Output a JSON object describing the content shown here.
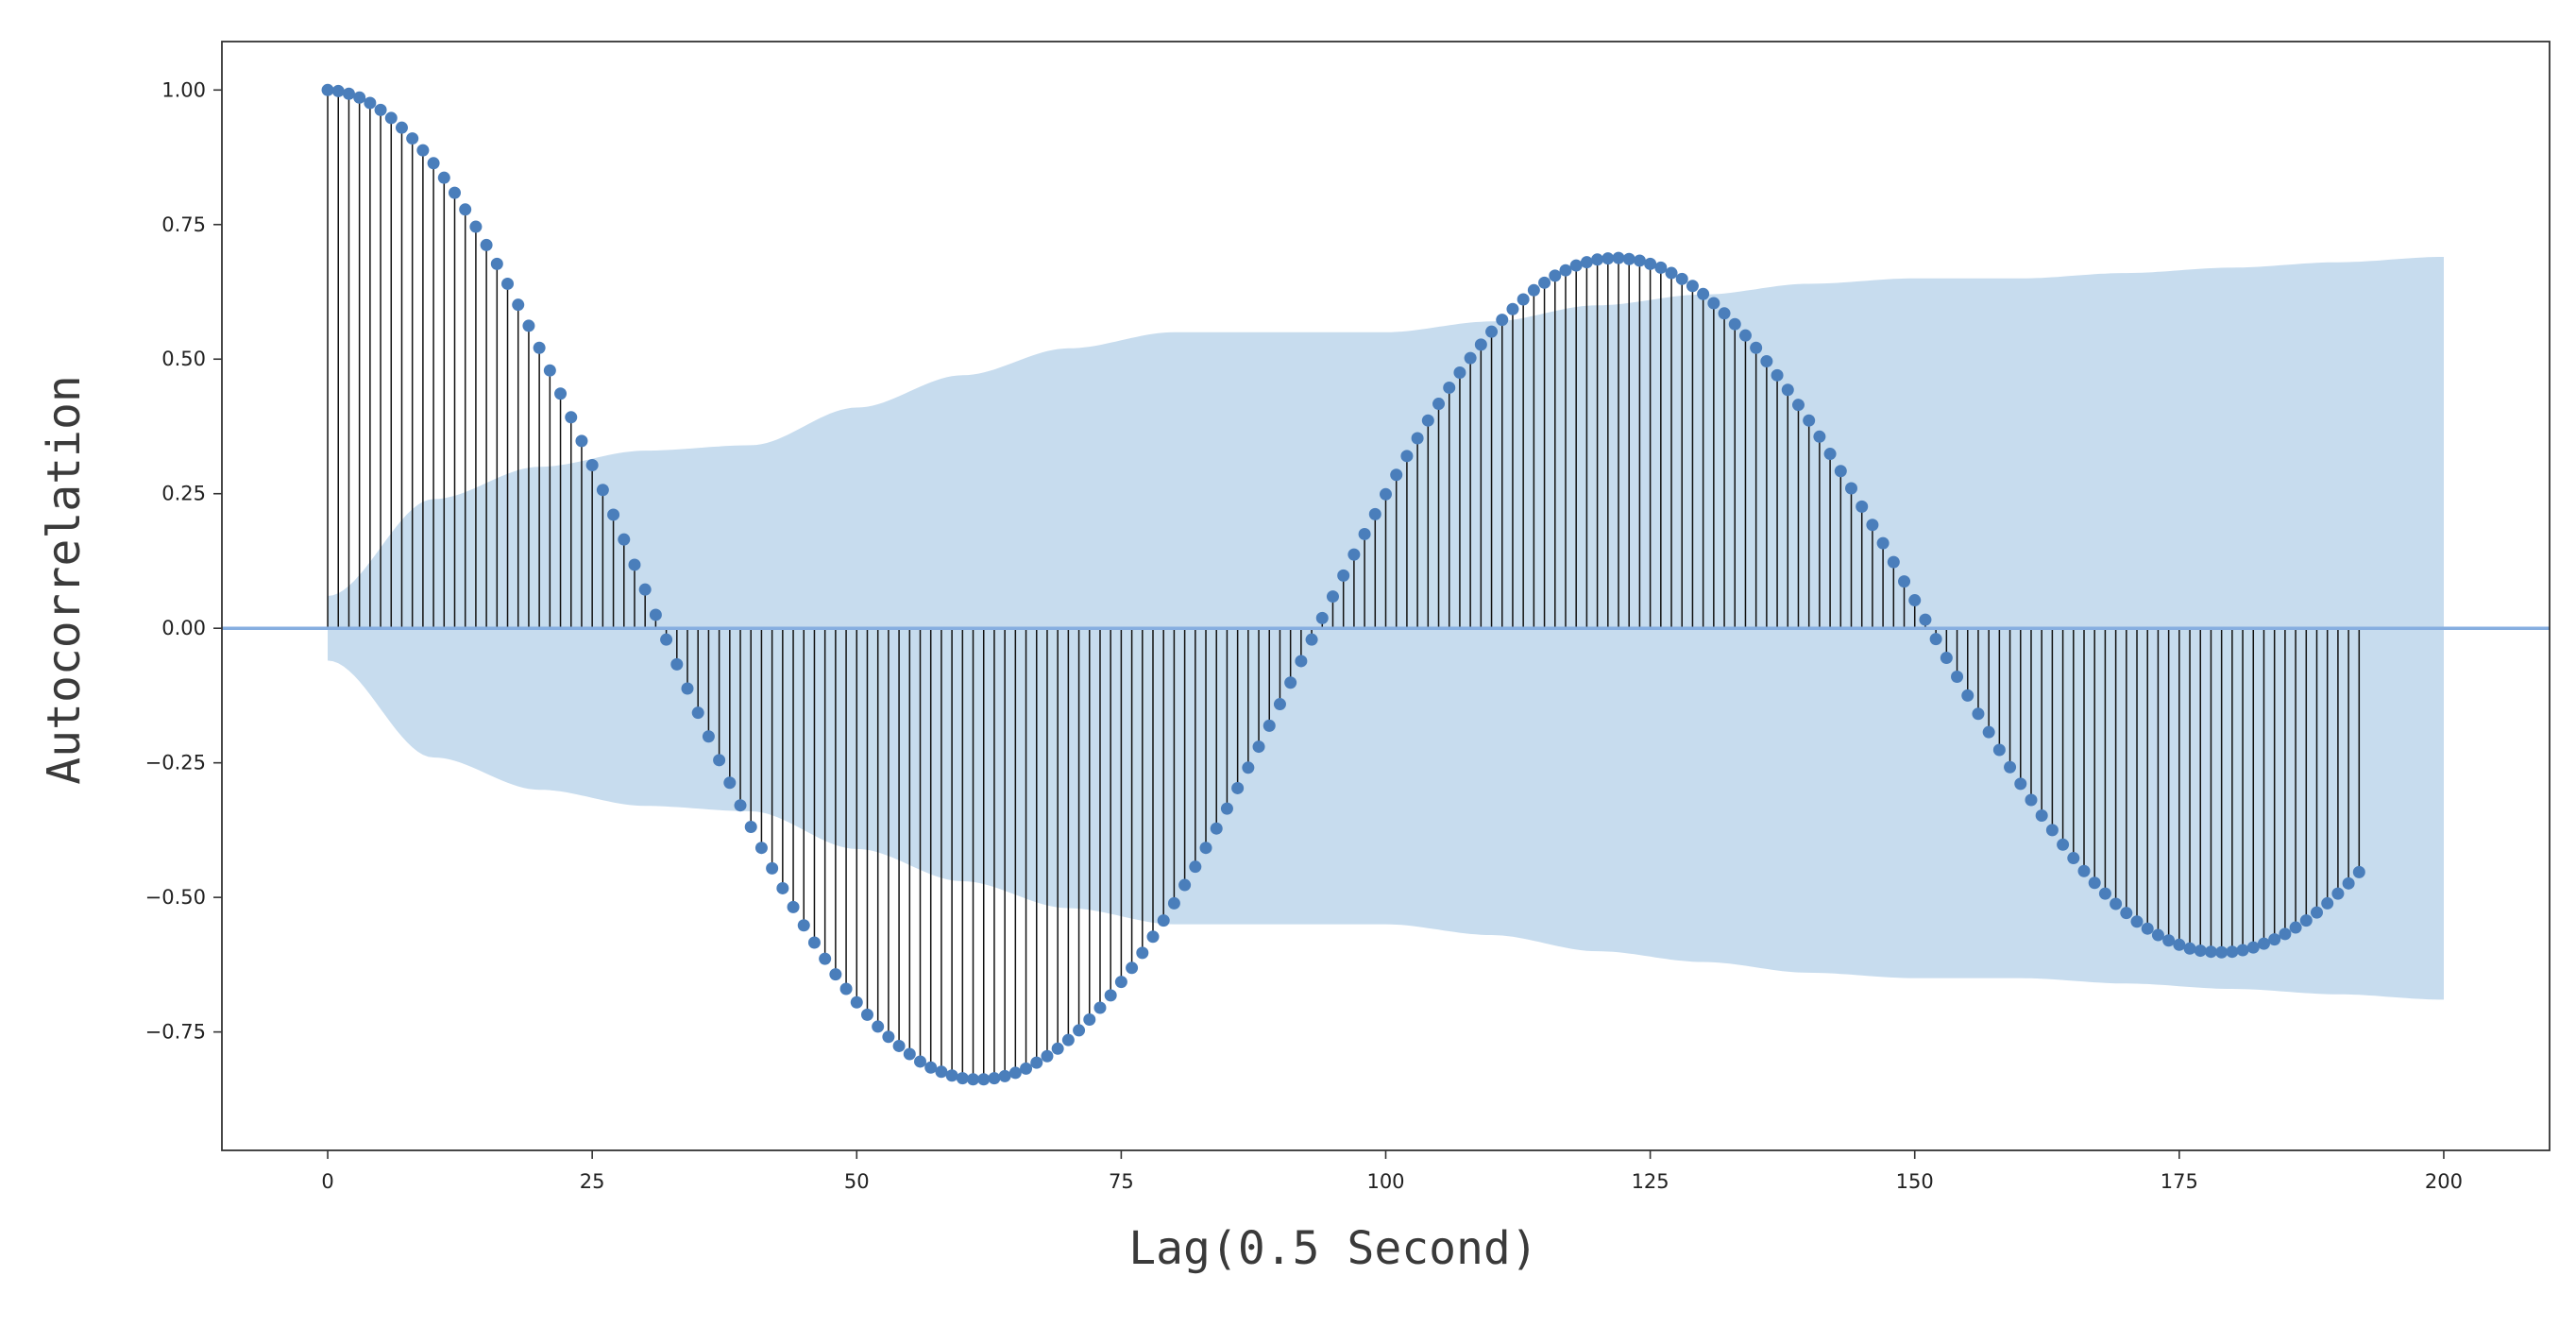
{
  "chart_data": {
    "type": "scatter",
    "subtype": "stem",
    "title": "",
    "xlabel": "Lag(0.5 Second)",
    "ylabel": "Autocorrelation",
    "xlim": [
      -10,
      210
    ],
    "ylim": [
      -0.97,
      1.09
    ],
    "xticks": [
      0,
      25,
      50,
      75,
      100,
      125,
      150,
      175,
      200
    ],
    "yticks": [
      1.0,
      0.75,
      0.5,
      0.25,
      0.0,
      -0.25,
      -0.5,
      -0.75
    ],
    "xtick_labels": [
      "0",
      "25",
      "50",
      "75",
      "100",
      "125",
      "150",
      "175",
      "200"
    ],
    "ytick_labels": [
      "1.00",
      "0.75",
      "0.50",
      "0.25",
      "0.00",
      "−0.25",
      "−0.50",
      "−0.75"
    ],
    "grid": false,
    "legend": "none",
    "series": [
      {
        "x_start": 0,
        "x_step": 1,
        "values": [
          1.0,
          0.998,
          0.993,
          0.986,
          0.976,
          0.963,
          0.948,
          0.93,
          0.91,
          0.888,
          0.864,
          0.837,
          0.809,
          0.778,
          0.746,
          0.712,
          0.677,
          0.64,
          0.601,
          0.562,
          0.521,
          0.479,
          0.436,
          0.392,
          0.348,
          0.303,
          0.257,
          0.211,
          0.165,
          0.118,
          0.072,
          0.025,
          -0.021,
          -0.067,
          -0.112,
          -0.157,
          -0.201,
          -0.245,
          -0.287,
          -0.329,
          -0.369,
          -0.408,
          -0.446,
          -0.483,
          -0.518,
          -0.552,
          -0.584,
          -0.614,
          -0.643,
          -0.67,
          -0.695,
          -0.718,
          -0.74,
          -0.759,
          -0.776,
          -0.791,
          -0.805,
          -0.816,
          -0.824,
          -0.831,
          -0.836,
          -0.838,
          -0.838,
          -0.836,
          -0.832,
          -0.826,
          -0.818,
          -0.807,
          -0.795,
          -0.781,
          -0.765,
          -0.747,
          -0.727,
          -0.705,
          -0.682,
          -0.657,
          -0.631,
          -0.603,
          -0.573,
          -0.543,
          -0.511,
          -0.477,
          -0.443,
          -0.408,
          -0.372,
          -0.335,
          -0.297,
          -0.259,
          -0.22,
          -0.181,
          -0.141,
          -0.101,
          -0.061,
          -0.021,
          0.019,
          0.059,
          0.098,
          0.137,
          0.175,
          0.212,
          0.249,
          0.285,
          0.32,
          0.353,
          0.386,
          0.417,
          0.447,
          0.475,
          0.502,
          0.527,
          0.551,
          0.573,
          0.593,
          0.611,
          0.628,
          0.642,
          0.655,
          0.665,
          0.674,
          0.68,
          0.685,
          0.687,
          0.688,
          0.686,
          0.683,
          0.677,
          0.67,
          0.66,
          0.649,
          0.636,
          0.621,
          0.604,
          0.585,
          0.565,
          0.544,
          0.521,
          0.496,
          0.47,
          0.443,
          0.415,
          0.386,
          0.356,
          0.324,
          0.292,
          0.26,
          0.226,
          0.192,
          0.158,
          0.123,
          0.087,
          0.052,
          0.016,
          -0.02,
          -0.055,
          -0.09,
          -0.125,
          -0.159,
          -0.193,
          -0.226,
          -0.258,
          -0.289,
          -0.319,
          -0.348,
          -0.375,
          -0.402,
          -0.427,
          -0.451,
          -0.473,
          -0.493,
          -0.512,
          -0.529,
          -0.545,
          -0.558,
          -0.57,
          -0.58,
          -0.588,
          -0.595,
          -0.599,
          -0.601,
          -0.602,
          -0.601,
          -0.598,
          -0.593,
          -0.586,
          -0.578,
          -0.568,
          -0.556,
          -0.543,
          -0.528,
          -0.511,
          -0.493,
          -0.474,
          -0.453
        ]
      }
    ],
    "confidence_band": {
      "x": [
        0,
        10,
        20,
        30,
        40,
        50,
        60,
        70,
        80,
        90,
        100,
        110,
        120,
        130,
        140,
        150,
        160,
        170,
        180,
        190,
        200
      ],
      "upper": [
        0.06,
        0.24,
        0.3,
        0.33,
        0.34,
        0.41,
        0.47,
        0.52,
        0.55,
        0.55,
        0.55,
        0.57,
        0.6,
        0.62,
        0.64,
        0.65,
        0.65,
        0.66,
        0.67,
        0.68,
        0.69
      ],
      "lower": [
        -0.06,
        -0.24,
        -0.3,
        -0.33,
        -0.34,
        -0.41,
        -0.47,
        -0.52,
        -0.55,
        -0.55,
        -0.55,
        -0.57,
        -0.6,
        -0.62,
        -0.64,
        -0.65,
        -0.65,
        -0.66,
        -0.67,
        -0.68,
        -0.69
      ]
    },
    "colors": {
      "marker": "#4a7ebb",
      "stem": "#111111",
      "baseline": "#86aee0",
      "band": "#c7dcee",
      "axes": "#333333"
    }
  }
}
